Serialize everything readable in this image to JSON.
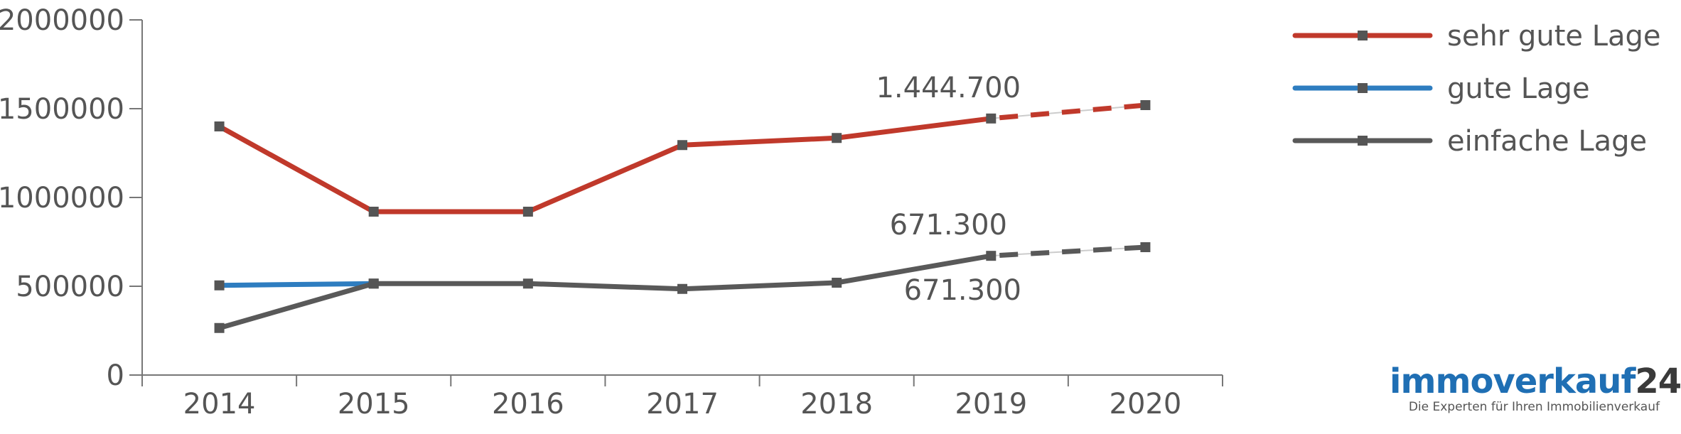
{
  "chart_data": {
    "type": "line",
    "categories": [
      "2014",
      "2015",
      "2016",
      "2017",
      "2018",
      "2019",
      "2020"
    ],
    "ylim": [
      0,
      2000000
    ],
    "yticks": [
      0,
      500000,
      1000000,
      1500000,
      2000000
    ],
    "ytick_labels": [
      "0",
      "500000",
      "1000000",
      "1500000",
      "2000000"
    ],
    "grid": false,
    "legend_position": "top-right",
    "series": [
      {
        "name": "sehr gute Lage",
        "color": "#c0392b",
        "values": [
          1400000,
          920000,
          920000,
          1295000,
          1335000,
          1444700,
          1520000
        ],
        "projected_from_index": 5
      },
      {
        "name": "gute Lage",
        "color": "#2e7dc0",
        "values": [
          505000,
          515000,
          null,
          null,
          null,
          null,
          null
        ],
        "projected_from_index": null
      },
      {
        "name": "einfache Lage",
        "color": "#595959",
        "values": [
          265000,
          515000,
          515000,
          485000,
          520000,
          671300,
          720000
        ],
        "projected_from_index": 5
      }
    ],
    "annotations": [
      {
        "text": "1.444.700",
        "series": 0,
        "index": 5,
        "placement": "above"
      },
      {
        "text": "671.300",
        "series": 2,
        "index": 5,
        "placement": "above"
      },
      {
        "text": "671.300",
        "series": 2,
        "index": 5,
        "placement": "below"
      }
    ],
    "marker_color": "#555555"
  },
  "logo": {
    "name_part1": "immoverkauf",
    "name_part2": "24",
    "tagline": "Die Experten für Ihren Immobilienverkauf"
  }
}
